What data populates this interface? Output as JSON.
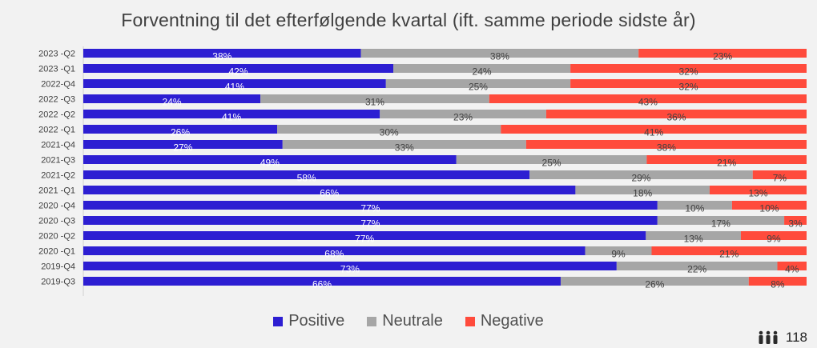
{
  "chart_data": {
    "type": "bar",
    "orientation": "horizontal",
    "stacked": true,
    "percent_stacked": true,
    "title": "Forventning til det efterfølgende kvartal (ift. samme periode sidste år)",
    "categories": [
      "2023 -Q2",
      "2023 -Q1",
      "2022-Q4",
      "2022 -Q3",
      "2022 -Q2",
      "2022 -Q1",
      "2021-Q4",
      "2021-Q3",
      "2021-Q2",
      "2021 -Q1",
      "2020 -Q4",
      "2020 -Q3",
      "2020 -Q2",
      "2020 -Q1",
      "2019-Q4",
      "2019-Q3"
    ],
    "series": [
      {
        "name": "Positive",
        "color": "#2d1ed2",
        "label_color": "#ffffff",
        "values": [
          38,
          42,
          41,
          24,
          41,
          26,
          27,
          49,
          58,
          66,
          77,
          77,
          77,
          68,
          73,
          66
        ]
      },
      {
        "name": "Neutrale",
        "color": "#a6a6a6",
        "label_color": "#404040",
        "values": [
          38,
          24,
          25,
          31,
          23,
          30,
          33,
          25,
          29,
          18,
          10,
          17,
          13,
          9,
          22,
          26
        ]
      },
      {
        "name": "Negative",
        "color": "#ff4b3c",
        "label_color": "#404040",
        "values": [
          23,
          32,
          32,
          43,
          36,
          41,
          38,
          21,
          7,
          13,
          10,
          3,
          9,
          21,
          4,
          8
        ]
      }
    ],
    "legend_position": "bottom",
    "grid": false
  },
  "footer": {
    "icon": "people-icon",
    "count": "118"
  }
}
